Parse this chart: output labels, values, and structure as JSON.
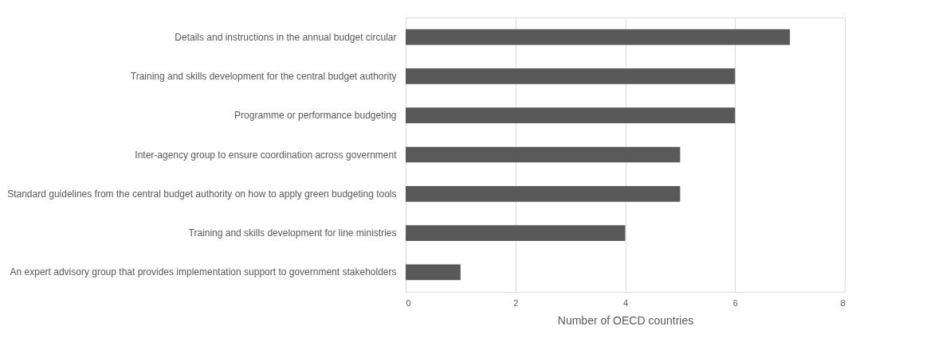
{
  "chart_data": {
    "type": "bar",
    "orientation": "horizontal",
    "xlabel": "Number of OECD countries",
    "categories": [
      "Details and instructions in the annual budget circular",
      "Training and skills development for the central budget authority",
      "Programme or performance budgeting",
      "Inter-agency group to ensure coordination across government",
      "Standard guidelines from the central budget authority on how to apply green budgeting tools",
      "Training and skills development for line ministries",
      "An expert advisory group that provides implementation support to government stakeholders"
    ],
    "values": [
      7,
      6,
      6,
      5,
      5,
      4,
      1
    ],
    "color": "#595959",
    "xlim": [
      0,
      8
    ],
    "xticks": [
      0,
      2,
      4,
      6,
      8
    ],
    "grid": "x"
  }
}
